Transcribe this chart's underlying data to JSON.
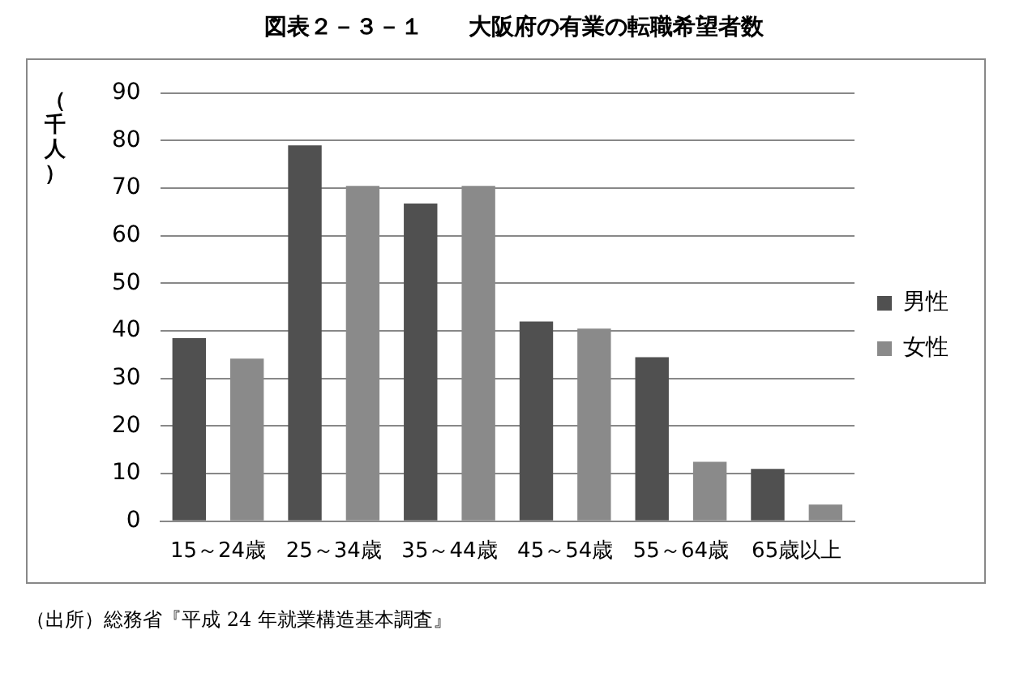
{
  "chart_data": {
    "type": "bar",
    "title": "図表２－３－１　　大阪府の有業の転職希望者数",
    "ylabel": "（千人）",
    "categories": [
      "15～24歳",
      "25～34歳",
      "35～44歳",
      "45～54歳",
      "55～64歳",
      "65歳以上"
    ],
    "series": [
      {
        "name": "男性",
        "color": "#505050",
        "values": [
          38.5,
          79,
          66.8,
          42,
          34.5,
          11
        ]
      },
      {
        "name": "女性",
        "color": "#8a8a8a",
        "values": [
          34.2,
          70.5,
          70.5,
          40.5,
          12.5,
          3.5
        ]
      }
    ],
    "ylim": [
      0,
      90
    ],
    "yticks": [
      0,
      10,
      20,
      30,
      40,
      50,
      60,
      70,
      80,
      90
    ],
    "grid": "y",
    "legend": "right",
    "annotations": [
      "（出所）総務省『平成 24 年就業構造基本調査』"
    ]
  }
}
